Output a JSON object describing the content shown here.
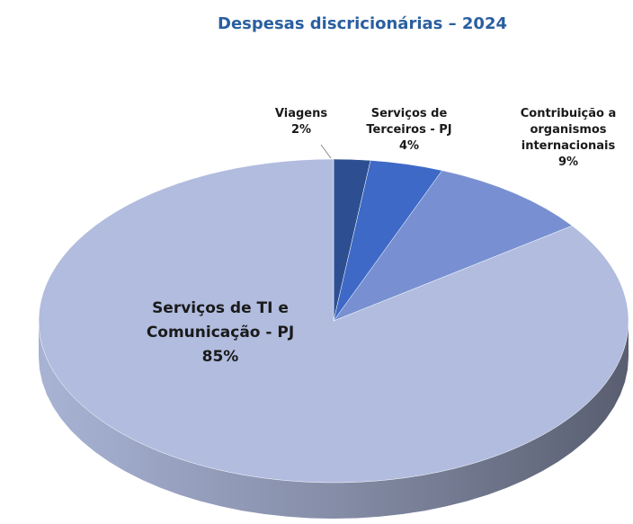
{
  "chart_data": {
    "type": "pie",
    "title": "Despesas discricionárias – 2024",
    "categories": [
      "Viagens",
      "Serviços de Terceiros - PJ",
      "Contribuição a organismos internacionais",
      "Serviços de TI e Comunicação - PJ"
    ],
    "values": [
      2,
      4,
      9,
      85
    ],
    "value_labels": [
      "2%",
      "4%",
      "9%",
      "85%"
    ],
    "colors": [
      "#2d4f92",
      "#3e69c6",
      "#7890d2",
      "#b1bcdf"
    ]
  }
}
